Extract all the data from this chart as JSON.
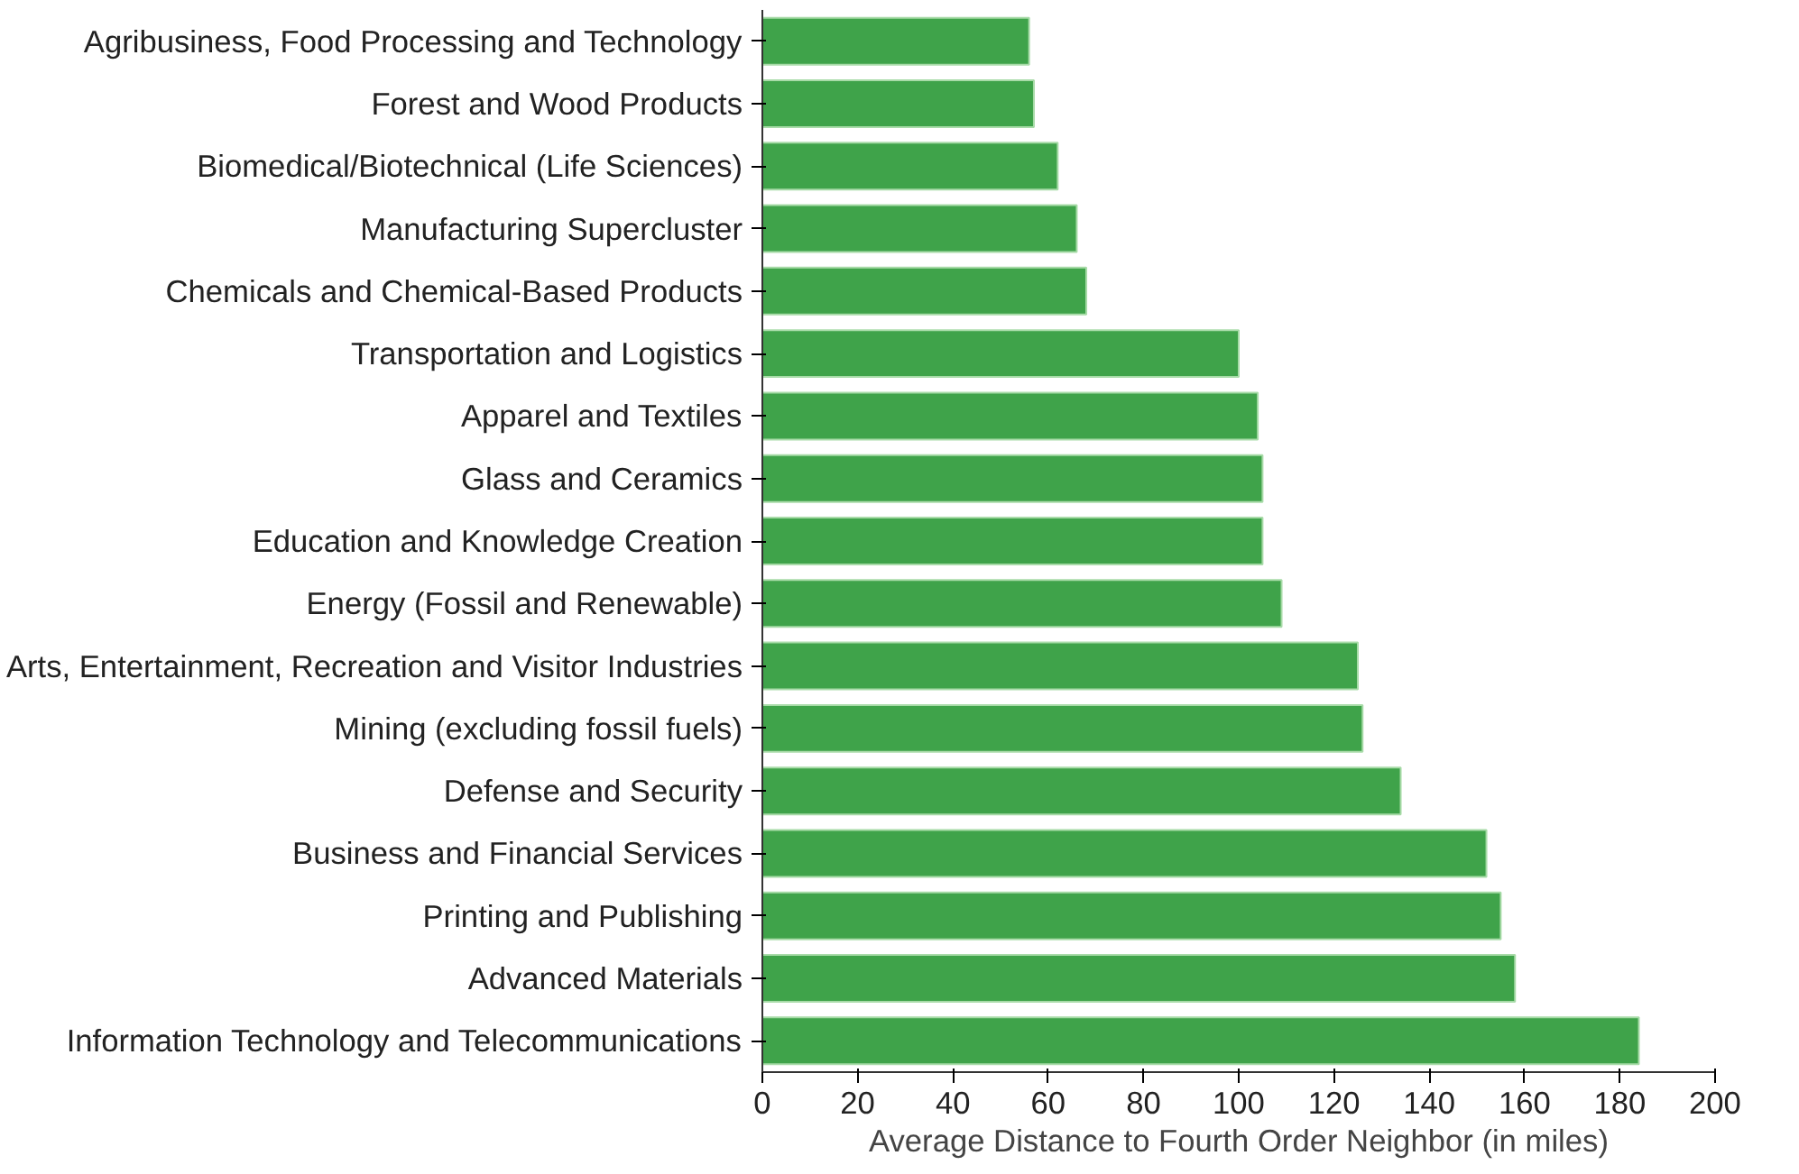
{
  "chart_data": {
    "type": "bar",
    "orientation": "horizontal",
    "xlabel": "Average Distance to Fourth Order Neighbor (in miles)",
    "categories": [
      "Agribusiness, Food Processing and Technology",
      "Forest and Wood Products",
      "Biomedical/Biotechnical (Life Sciences)",
      "Manufacturing Supercluster",
      "Chemicals and Chemical-Based Products",
      "Transportation and Logistics",
      "Apparel and Textiles",
      "Glass and Ceramics",
      "Education and Knowledge Creation",
      "Energy (Fossil and Renewable)",
      "Arts, Entertainment, Recreation and Visitor Industries",
      "Mining (excluding fossil fuels)",
      "Defense and Security",
      "Business and Financial Services",
      "Printing and Publishing",
      "Advanced Materials",
      "Information Technology and Telecommunications"
    ],
    "values": [
      56,
      57,
      62,
      66,
      68,
      100,
      104,
      105,
      105,
      109,
      125,
      126,
      134,
      152,
      155,
      158,
      184
    ],
    "color": "#3fa34a",
    "xlim": [
      0,
      200
    ],
    "xticks": [
      0,
      20,
      40,
      60,
      80,
      100,
      120,
      140,
      160,
      180,
      200
    ],
    "grid": false
  }
}
